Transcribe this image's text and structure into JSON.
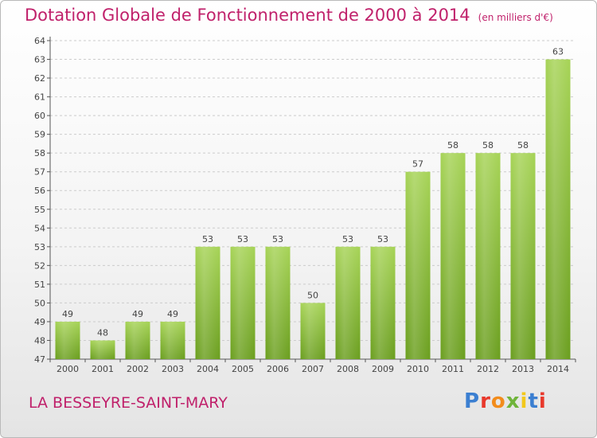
{
  "title": "Dotation Globale de Fonctionnement de 2000 à 2014",
  "unit": "(en milliers d'€)",
  "commune": "LA BESSEYRE-SAINT-MARY",
  "logo": {
    "text": "Proxiti",
    "colors": [
      "#3b7fd1",
      "#e8382b",
      "#f28c1c",
      "#6fb43a",
      "#f2c81c",
      "#3b7fd1",
      "#e8382b"
    ]
  },
  "colors": {
    "accent": "#c0216b",
    "bar_top": "#a6d356",
    "bar_bottom": "#6a9e1e",
    "grid": "#cccccc"
  },
  "chart_data": {
    "type": "bar",
    "categories": [
      "2000",
      "2001",
      "2002",
      "2003",
      "2004",
      "2005",
      "2006",
      "2007",
      "2008",
      "2009",
      "2010",
      "2011",
      "2012",
      "2013",
      "2014"
    ],
    "values": [
      49,
      48,
      49,
      49,
      53,
      53,
      53,
      50,
      53,
      53,
      57,
      58,
      58,
      58,
      63
    ],
    "ylim": [
      47,
      64
    ],
    "yticks": [
      47,
      48,
      49,
      50,
      51,
      52,
      53,
      54,
      55,
      56,
      57,
      58,
      59,
      60,
      61,
      62,
      63,
      64
    ],
    "grid": true,
    "data_labels": true
  }
}
